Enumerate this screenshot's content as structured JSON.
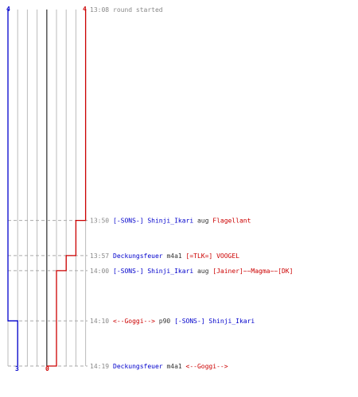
{
  "chart_data": {
    "type": "line",
    "blue_color": "#0000cc",
    "red_color": "#cc0000",
    "blue_start": "4",
    "red_start": "4",
    "blue_final": "3",
    "red_final": "0",
    "y_time_min": [
      13,
      8
    ],
    "y_time_max": [
      14,
      19
    ],
    "events": [
      {
        "time": "13:08",
        "minutes": [
          13,
          8
        ],
        "parts": [
          {
            "text": "round started",
            "c": "gray"
          }
        ],
        "blue": 4,
        "red": 4
      },
      {
        "time": "13:50",
        "minutes": [
          13,
          50
        ],
        "parts": [
          {
            "text": "[-SONS-] Shinji_Ikari",
            "c": "blue"
          },
          {
            "text": " aug ",
            "c": "dark"
          },
          {
            "text": "Flagellant",
            "c": "red"
          }
        ],
        "blue": 4,
        "red": 3
      },
      {
        "time": "13:57",
        "minutes": [
          13,
          57
        ],
        "parts": [
          {
            "text": "Deckungsfeuer",
            "c": "blue"
          },
          {
            "text": " m4a1 ",
            "c": "dark"
          },
          {
            "text": "[=TLK=] VOOGEL",
            "c": "red"
          }
        ],
        "blue": 4,
        "red": 2
      },
      {
        "time": "14:00",
        "minutes": [
          14,
          0
        ],
        "parts": [
          {
            "text": "[-SONS-] Shinji_Ikari",
            "c": "blue"
          },
          {
            "text": " aug ",
            "c": "dark"
          },
          {
            "text": "[Jainer]~~Magma~~[DK]",
            "c": "red"
          }
        ],
        "blue": 4,
        "red": 1
      },
      {
        "time": "14:10",
        "minutes": [
          14,
          10
        ],
        "parts": [
          {
            "text": "<--Goggi-->",
            "c": "red"
          },
          {
            "text": " p90 ",
            "c": "dark"
          },
          {
            "text": "[-SONS-] Shinji_Ikari",
            "c": "blue"
          }
        ],
        "blue": 3,
        "red": 1
      },
      {
        "time": "14:19",
        "minutes": [
          14,
          19
        ],
        "parts": [
          {
            "text": "Deckungsfeuer",
            "c": "blue"
          },
          {
            "text": " m4a1 ",
            "c": "dark"
          },
          {
            "text": "<--Goggi-->",
            "c": "red"
          }
        ],
        "blue": 3,
        "red": 0
      }
    ]
  }
}
